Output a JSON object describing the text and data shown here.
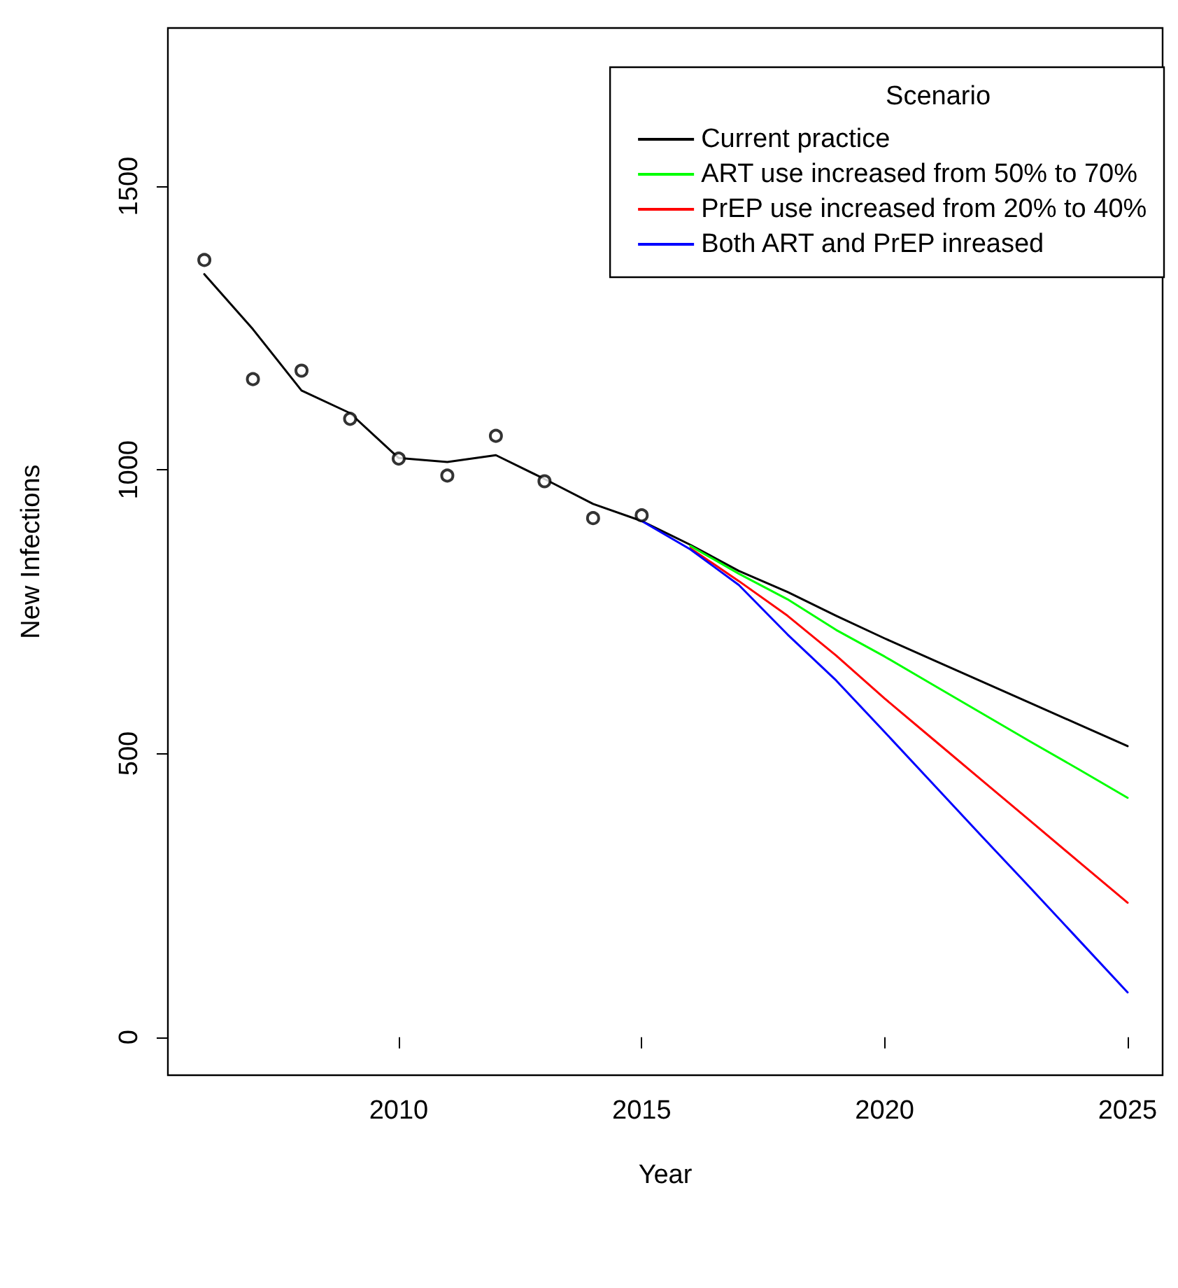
{
  "chart_data": {
    "type": "line",
    "xlabel": "Year",
    "ylabel": "New Infections",
    "legend_title": "Scenario",
    "xlim": [
      2005.25,
      2025.72
    ],
    "xticks": [
      2010,
      2015,
      2020,
      2025
    ],
    "ylim": [
      -67,
      1779
    ],
    "yticks": [
      0,
      500,
      1000,
      1500
    ],
    "grid": false,
    "legend": "top right",
    "line_style": "solid",
    "series": [
      {
        "name": "Current practice",
        "color": "#000000",
        "marker": "none",
        "x": [
          2006,
          2007,
          2008,
          2009,
          2010,
          2011,
          2012,
          2013,
          2014,
          2015,
          2016,
          2017,
          2018,
          2019,
          2020,
          2021,
          2022,
          2023,
          2024,
          2025
        ],
        "values": [
          1345,
          1248,
          1140,
          1100,
          1021,
          1014,
          1026,
          984,
          940,
          910,
          868,
          822,
          785,
          743,
          703,
          665,
          627,
          589,
          551,
          513
        ]
      },
      {
        "name": "ART use increased from 50% to 70%",
        "color": "#00ff00",
        "marker": "none",
        "x": [
          2016,
          2017,
          2018,
          2019,
          2020,
          2021,
          2022,
          2023,
          2024,
          2025
        ],
        "values": [
          866,
          817,
          772,
          718,
          671,
          621,
          571,
          521,
          472,
          422
        ]
      },
      {
        "name": "PrEP use increased from 20% to 40%",
        "color": "#ff0000",
        "marker": "none",
        "x": [
          2016,
          2017,
          2018,
          2019,
          2020,
          2021,
          2022,
          2023,
          2024,
          2025
        ],
        "values": [
          862,
          804,
          743,
          673,
          597,
          525,
          453,
          381,
          309,
          237
        ]
      },
      {
        "name": "Both ART and PrEP inreased",
        "color": "#0000ff",
        "marker": "none",
        "x": [
          2015,
          2016,
          2017,
          2018,
          2019,
          2020,
          2021,
          2022,
          2023,
          2024,
          2025
        ],
        "values": [
          910,
          860,
          797,
          710,
          629,
          538,
          446,
          354,
          263,
          171,
          79
        ]
      },
      {
        "type": "scatter",
        "color": "#000000",
        "marker": "circle",
        "x": [
          2006,
          2007,
          2008,
          2009,
          2010,
          2011,
          2012,
          2013,
          2014,
          2015
        ],
        "values": [
          1370,
          1160,
          1175,
          1090,
          1020,
          990,
          1060,
          980,
          915,
          920
        ]
      }
    ]
  }
}
